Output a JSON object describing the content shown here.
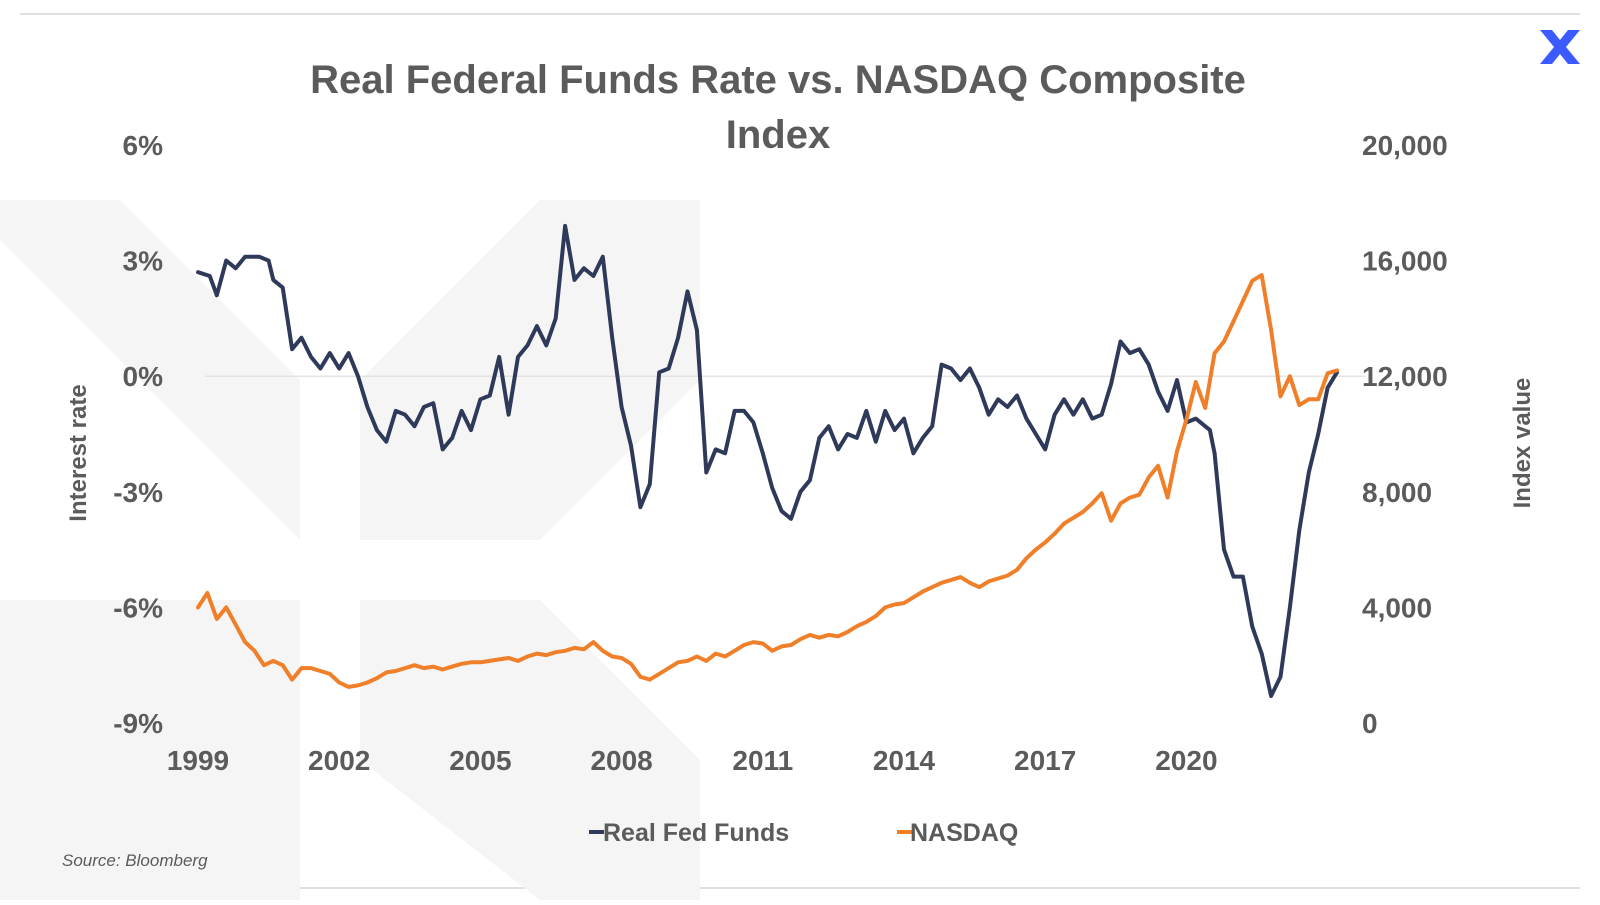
{
  "title_line1": "Real Federal Funds Rate vs. NASDAQ Composite",
  "title_line2": "Index",
  "source": "Source: Bloomberg",
  "logo_icon": "x-logo-icon",
  "colors": {
    "real_fed_funds": "#2f3a5a",
    "nasdaq": "#f07f2a",
    "text": "#5b5b5b",
    "brand": "#3b5bff"
  },
  "chart_data": {
    "type": "line",
    "title": "Real Federal Funds Rate vs. NASDAQ Composite Index",
    "xlabel": "",
    "ylabel_left": "Interest rate",
    "ylabel_right": "Index value",
    "xlim": [
      1999,
      2023.2
    ],
    "ylim_left": [
      -9,
      6
    ],
    "ylim_right": [
      0,
      20000
    ],
    "x_ticks": [
      "1999",
      "2002",
      "2005",
      "2008",
      "2011",
      "2014",
      "2017",
      "2020"
    ],
    "y_left_ticks": [
      "6%",
      "3%",
      "0%",
      "-3%",
      "-6%",
      "-9%"
    ],
    "y_right_ticks": [
      "20,000",
      "16,000",
      "12,000",
      "8,000",
      "4,000",
      "0"
    ],
    "grid": "zero line only",
    "legend": "bottom-center",
    "series": [
      {
        "name": "Real Fed Funds",
        "axis": "left",
        "points": [
          [
            1999.0,
            2.7
          ],
          [
            1999.25,
            2.6
          ],
          [
            1999.4,
            2.1
          ],
          [
            1999.6,
            3.0
          ],
          [
            1999.8,
            2.8
          ],
          [
            2000.0,
            3.1
          ],
          [
            2000.3,
            3.1
          ],
          [
            2000.5,
            3.0
          ],
          [
            2000.6,
            2.5
          ],
          [
            2000.8,
            2.3
          ],
          [
            2001.0,
            0.7
          ],
          [
            2001.2,
            1.0
          ],
          [
            2001.4,
            0.5
          ],
          [
            2001.6,
            0.2
          ],
          [
            2001.8,
            0.6
          ],
          [
            2002.0,
            0.2
          ],
          [
            2002.2,
            0.6
          ],
          [
            2002.4,
            0.0
          ],
          [
            2002.6,
            -0.8
          ],
          [
            2002.8,
            -1.4
          ],
          [
            2003.0,
            -1.7
          ],
          [
            2003.2,
            -0.9
          ],
          [
            2003.4,
            -1.0
          ],
          [
            2003.6,
            -1.3
          ],
          [
            2003.8,
            -0.8
          ],
          [
            2004.0,
            -0.7
          ],
          [
            2004.2,
            -1.9
          ],
          [
            2004.4,
            -1.6
          ],
          [
            2004.6,
            -0.9
          ],
          [
            2004.8,
            -1.4
          ],
          [
            2005.0,
            -0.6
          ],
          [
            2005.2,
            -0.5
          ],
          [
            2005.4,
            0.5
          ],
          [
            2005.6,
            -1.0
          ],
          [
            2005.8,
            0.5
          ],
          [
            2006.0,
            0.8
          ],
          [
            2006.2,
            1.3
          ],
          [
            2006.4,
            0.8
          ],
          [
            2006.6,
            1.5
          ],
          [
            2006.8,
            3.9
          ],
          [
            2007.0,
            2.5
          ],
          [
            2007.2,
            2.8
          ],
          [
            2007.4,
            2.6
          ],
          [
            2007.6,
            3.1
          ],
          [
            2007.8,
            1.0
          ],
          [
            2008.0,
            -0.8
          ],
          [
            2008.2,
            -1.8
          ],
          [
            2008.4,
            -3.4
          ],
          [
            2008.6,
            -2.8
          ],
          [
            2008.8,
            0.1
          ],
          [
            2009.0,
            0.2
          ],
          [
            2009.2,
            1.0
          ],
          [
            2009.4,
            2.2
          ],
          [
            2009.6,
            1.2
          ],
          [
            2009.8,
            -2.5
          ],
          [
            2010.0,
            -1.9
          ],
          [
            2010.2,
            -2.0
          ],
          [
            2010.4,
            -0.9
          ],
          [
            2010.6,
            -0.9
          ],
          [
            2010.8,
            -1.2
          ],
          [
            2011.0,
            -2.0
          ],
          [
            2011.2,
            -2.9
          ],
          [
            2011.4,
            -3.5
          ],
          [
            2011.6,
            -3.7
          ],
          [
            2011.8,
            -3.0
          ],
          [
            2012.0,
            -2.7
          ],
          [
            2012.2,
            -1.6
          ],
          [
            2012.4,
            -1.3
          ],
          [
            2012.6,
            -1.9
          ],
          [
            2012.8,
            -1.5
          ],
          [
            2013.0,
            -1.6
          ],
          [
            2013.2,
            -0.9
          ],
          [
            2013.4,
            -1.7
          ],
          [
            2013.6,
            -0.9
          ],
          [
            2013.8,
            -1.4
          ],
          [
            2014.0,
            -1.1
          ],
          [
            2014.2,
            -2.0
          ],
          [
            2014.4,
            -1.6
          ],
          [
            2014.6,
            -1.3
          ],
          [
            2014.8,
            0.3
          ],
          [
            2015.0,
            0.2
          ],
          [
            2015.2,
            -0.1
          ],
          [
            2015.4,
            0.2
          ],
          [
            2015.6,
            -0.3
          ],
          [
            2015.8,
            -1.0
          ],
          [
            2016.0,
            -0.6
          ],
          [
            2016.2,
            -0.8
          ],
          [
            2016.4,
            -0.5
          ],
          [
            2016.6,
            -1.1
          ],
          [
            2016.8,
            -1.5
          ],
          [
            2017.0,
            -1.9
          ],
          [
            2017.2,
            -1.0
          ],
          [
            2017.4,
            -0.6
          ],
          [
            2017.6,
            -1.0
          ],
          [
            2017.8,
            -0.6
          ],
          [
            2018.0,
            -1.1
          ],
          [
            2018.2,
            -1.0
          ],
          [
            2018.4,
            -0.2
          ],
          [
            2018.6,
            0.9
          ],
          [
            2018.8,
            0.6
          ],
          [
            2019.0,
            0.7
          ],
          [
            2019.2,
            0.3
          ],
          [
            2019.4,
            -0.4
          ],
          [
            2019.6,
            -0.9
          ],
          [
            2019.8,
            -0.1
          ],
          [
            2020.0,
            -1.2
          ],
          [
            2020.2,
            -1.1
          ],
          [
            2020.5,
            -1.4
          ],
          [
            2020.6,
            -2.0
          ],
          [
            2020.8,
            -4.5
          ],
          [
            2021.0,
            -5.2
          ],
          [
            2021.2,
            -5.2
          ],
          [
            2021.4,
            -6.5
          ],
          [
            2021.6,
            -7.2
          ],
          [
            2021.8,
            -8.3
          ],
          [
            2022.0,
            -7.8
          ],
          [
            2022.2,
            -6.0
          ],
          [
            2022.4,
            -4.0
          ],
          [
            2022.6,
            -2.5
          ],
          [
            2022.8,
            -1.5
          ],
          [
            2023.0,
            -0.3
          ],
          [
            2023.2,
            0.1
          ]
        ]
      },
      {
        "name": "NASDAQ",
        "axis": "right",
        "points": [
          [
            1999.0,
            4000
          ],
          [
            1999.2,
            4500
          ],
          [
            1999.4,
            3600
          ],
          [
            1999.6,
            4000
          ],
          [
            1999.8,
            3400
          ],
          [
            2000.0,
            2800
          ],
          [
            2000.2,
            2500
          ],
          [
            2000.4,
            2000
          ],
          [
            2000.6,
            2150
          ],
          [
            2000.8,
            2000
          ],
          [
            2001.0,
            1500
          ],
          [
            2001.2,
            1900
          ],
          [
            2001.4,
            1900
          ],
          [
            2001.6,
            1800
          ],
          [
            2001.8,
            1700
          ],
          [
            2002.0,
            1400
          ],
          [
            2002.2,
            1250
          ],
          [
            2002.4,
            1300
          ],
          [
            2002.6,
            1400
          ],
          [
            2002.8,
            1550
          ],
          [
            2003.0,
            1750
          ],
          [
            2003.2,
            1800
          ],
          [
            2003.4,
            1900
          ],
          [
            2003.6,
            2000
          ],
          [
            2003.8,
            1900
          ],
          [
            2004.0,
            1950
          ],
          [
            2004.2,
            1850
          ],
          [
            2004.4,
            1950
          ],
          [
            2004.6,
            2050
          ],
          [
            2004.8,
            2100
          ],
          [
            2005.0,
            2100
          ],
          [
            2005.2,
            2150
          ],
          [
            2005.4,
            2200
          ],
          [
            2005.6,
            2250
          ],
          [
            2005.8,
            2150
          ],
          [
            2006.0,
            2300
          ],
          [
            2006.2,
            2400
          ],
          [
            2006.4,
            2350
          ],
          [
            2006.6,
            2450
          ],
          [
            2006.8,
            2500
          ],
          [
            2007.0,
            2600
          ],
          [
            2007.2,
            2550
          ],
          [
            2007.4,
            2800
          ],
          [
            2007.6,
            2500
          ],
          [
            2007.8,
            2300
          ],
          [
            2008.0,
            2250
          ],
          [
            2008.2,
            2050
          ],
          [
            2008.4,
            1600
          ],
          [
            2008.6,
            1500
          ],
          [
            2008.8,
            1700
          ],
          [
            2009.0,
            1900
          ],
          [
            2009.2,
            2100
          ],
          [
            2009.4,
            2150
          ],
          [
            2009.6,
            2300
          ],
          [
            2009.8,
            2150
          ],
          [
            2010.0,
            2400
          ],
          [
            2010.2,
            2300
          ],
          [
            2010.4,
            2500
          ],
          [
            2010.6,
            2700
          ],
          [
            2010.8,
            2800
          ],
          [
            2011.0,
            2750
          ],
          [
            2011.2,
            2500
          ],
          [
            2011.4,
            2650
          ],
          [
            2011.6,
            2700
          ],
          [
            2011.8,
            2900
          ],
          [
            2012.0,
            3050
          ],
          [
            2012.2,
            2950
          ],
          [
            2012.4,
            3050
          ],
          [
            2012.6,
            3000
          ],
          [
            2012.8,
            3150
          ],
          [
            2013.0,
            3350
          ],
          [
            2013.2,
            3500
          ],
          [
            2013.4,
            3700
          ],
          [
            2013.6,
            4000
          ],
          [
            2013.8,
            4100
          ],
          [
            2014.0,
            4150
          ],
          [
            2014.2,
            4350
          ],
          [
            2014.4,
            4550
          ],
          [
            2014.6,
            4700
          ],
          [
            2014.8,
            4850
          ],
          [
            2015.0,
            4950
          ],
          [
            2015.2,
            5050
          ],
          [
            2015.4,
            4850
          ],
          [
            2015.6,
            4700
          ],
          [
            2015.8,
            4900
          ],
          [
            2016.0,
            5000
          ],
          [
            2016.2,
            5100
          ],
          [
            2016.4,
            5300
          ],
          [
            2016.6,
            5700
          ],
          [
            2016.8,
            6000
          ],
          [
            2017.0,
            6250
          ],
          [
            2017.2,
            6550
          ],
          [
            2017.4,
            6900
          ],
          [
            2017.6,
            7100
          ],
          [
            2017.8,
            7300
          ],
          [
            2018.0,
            7600
          ],
          [
            2018.2,
            7950
          ],
          [
            2018.4,
            7000
          ],
          [
            2018.6,
            7600
          ],
          [
            2018.8,
            7800
          ],
          [
            2019.0,
            7900
          ],
          [
            2019.2,
            8500
          ],
          [
            2019.4,
            8900
          ],
          [
            2019.6,
            7800
          ],
          [
            2019.8,
            9400
          ],
          [
            2020.0,
            10500
          ],
          [
            2020.2,
            11800
          ],
          [
            2020.4,
            10900
          ],
          [
            2020.6,
            12800
          ],
          [
            2020.8,
            13200
          ],
          [
            2021.0,
            13900
          ],
          [
            2021.2,
            14600
          ],
          [
            2021.4,
            15300
          ],
          [
            2021.6,
            15500
          ],
          [
            2021.8,
            13600
          ],
          [
            2022.0,
            11300
          ],
          [
            2022.2,
            12000
          ],
          [
            2022.4,
            11000
          ],
          [
            2022.6,
            11200
          ],
          [
            2022.8,
            11200
          ],
          [
            2023.0,
            12100
          ],
          [
            2023.2,
            12200
          ]
        ]
      }
    ]
  }
}
